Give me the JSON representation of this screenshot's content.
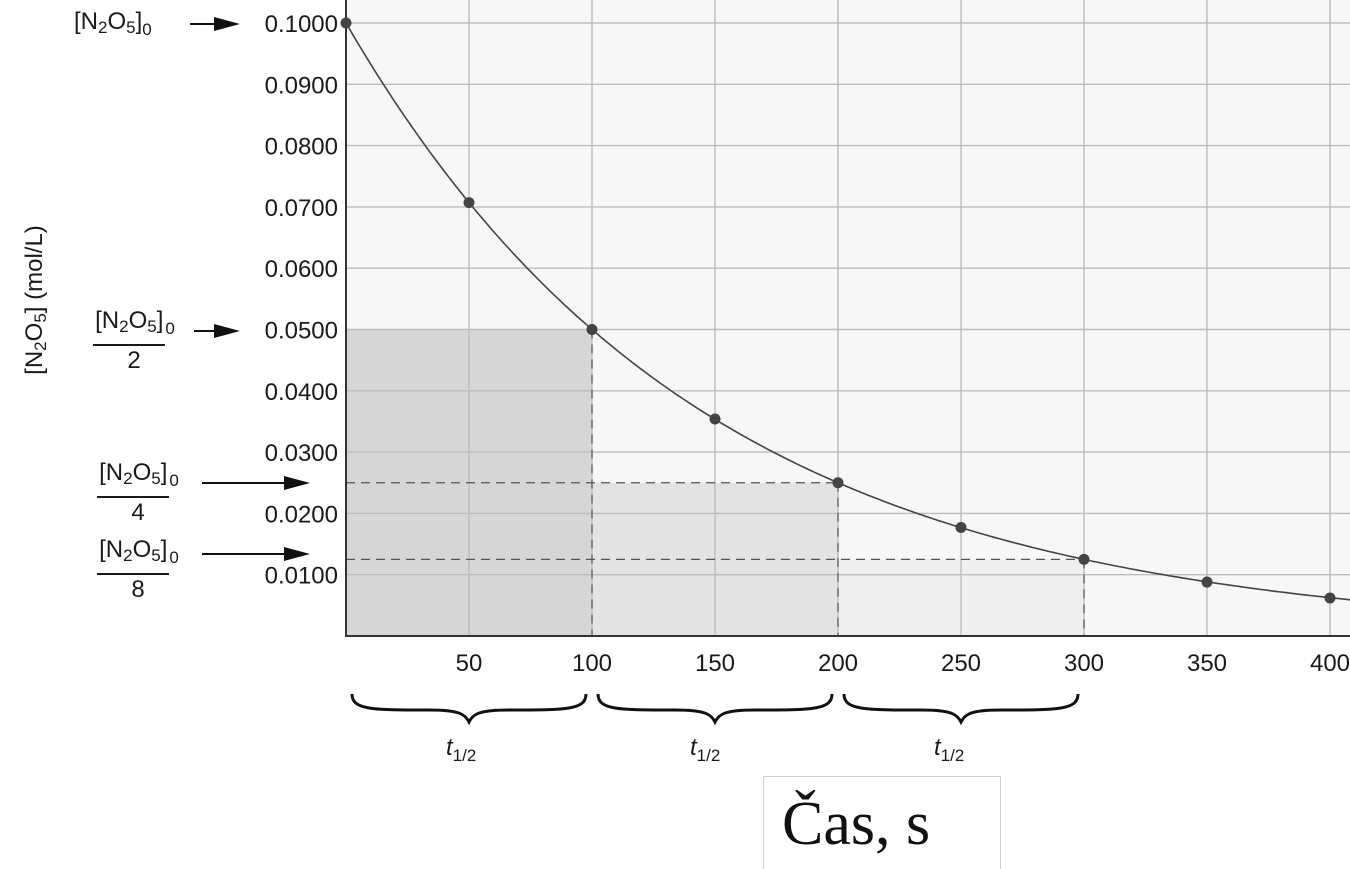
{
  "chart_data": {
    "type": "line",
    "title": "",
    "xlabel": "Čas, s",
    "ylabel": "[N2O5] (mol/L)",
    "xlim": [
      0,
      410
    ],
    "ylim": [
      0,
      0.1
    ],
    "grid": true,
    "x_ticks": [
      "50",
      "100",
      "150",
      "200",
      "250",
      "300",
      "350",
      "400"
    ],
    "y_ticks": [
      "0.0100",
      "0.0200",
      "0.0300",
      "0.0400",
      "0.0500",
      "0.0600",
      "0.0700",
      "0.0800",
      "0.0900",
      "0.1000"
    ],
    "series": [
      {
        "name": "[N2O5]",
        "x": [
          0,
          50,
          100,
          150,
          200,
          250,
          300,
          350,
          400
        ],
        "y": [
          0.1,
          0.0707,
          0.05,
          0.0354,
          0.025,
          0.0177,
          0.0125,
          0.0088,
          0.0062
        ]
      }
    ],
    "half_life_regions": [
      {
        "x0": 0,
        "x1": 100,
        "level": 0.05,
        "shade": "#d6d6d6"
      },
      {
        "x0": 100,
        "x1": 200,
        "level": 0.025,
        "shade": "#e3e3e3"
      },
      {
        "x0": 200,
        "x1": 300,
        "level": 0.0125,
        "shade": "#efefef"
      }
    ],
    "half_life_label": "t",
    "half_life_subscript": "1/2",
    "annotations": {
      "initial": {
        "num": "[N",
        "s1": "2",
        "mid": "O",
        "s2": "5",
        "end": "]",
        "s0": "0",
        "den": ""
      },
      "half": {
        "den": "2"
      },
      "quarter": {
        "den": "4"
      },
      "eighth": {
        "den": "8"
      }
    },
    "colors": {
      "curve": "#444444",
      "point": "#444444",
      "grid": "#bdbdbd",
      "plot_bg": "#f7f7f7"
    }
  }
}
